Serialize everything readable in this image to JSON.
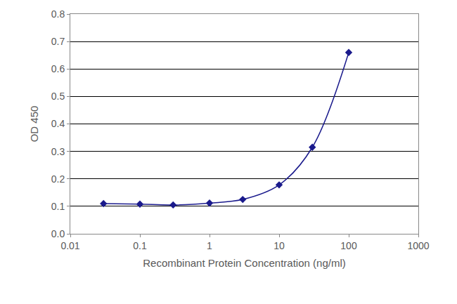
{
  "chart_data": {
    "type": "line",
    "x_label": "Recombinant Protein Concentration (ng/ml)",
    "y_label": "OD 450",
    "log": "x",
    "grid": true,
    "marker": "diamond",
    "series": [
      {
        "color": "#1a1a8c",
        "x": [
          0.03,
          0.1,
          0.3,
          1,
          3,
          10,
          30,
          100
        ],
        "values": [
          0.11,
          0.108,
          0.105,
          0.112,
          0.125,
          0.178,
          0.315,
          0.66
        ]
      }
    ],
    "xlim": [
      0.01,
      1000
    ],
    "xticks": [
      0.01,
      0.1,
      1,
      10,
      100,
      1000
    ],
    "ylim": [
      0,
      0.8
    ],
    "yticks": [
      {
        "value": 0,
        "label": "0.0"
      },
      0.1,
      0.2,
      0.3,
      0.4,
      0.5,
      0.6,
      0.7,
      0.8
    ]
  }
}
